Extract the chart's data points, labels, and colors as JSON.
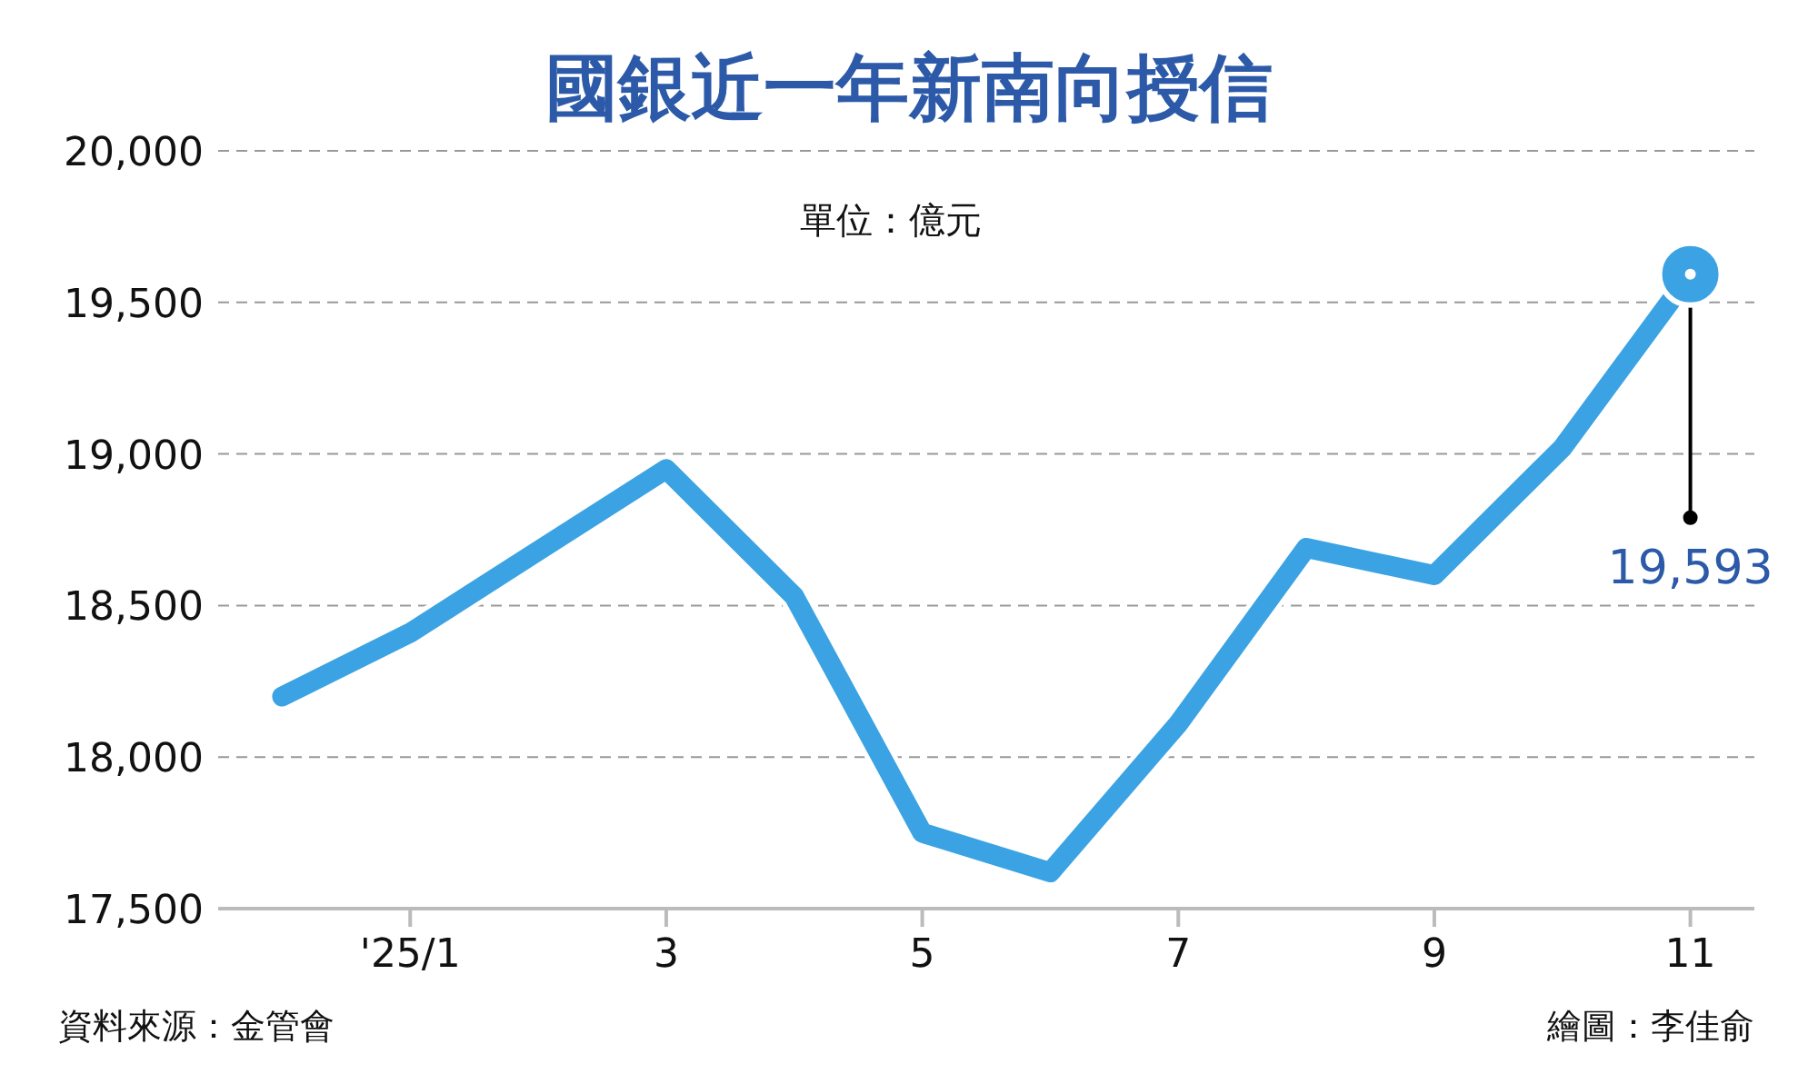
{
  "chart_data": {
    "type": "line",
    "title": "國銀近一年新南向授信",
    "subtitle": "單位：億元",
    "categories": [
      null,
      "'25/1",
      null,
      "3",
      null,
      "5",
      null,
      "7",
      null,
      "9",
      null,
      "11"
    ],
    "series": [
      {
        "color": "#3ba3e3",
        "values": [
          18200,
          18410,
          18680,
          18950,
          18530,
          17750,
          17620,
          18110,
          18690,
          18600,
          19020,
          19593
        ]
      }
    ],
    "ylim": [
      17500,
      20000
    ],
    "yticks": [
      {
        "value": 17500,
        "label": "17,500"
      },
      {
        "value": 18000,
        "label": "18,000"
      },
      {
        "value": 18500,
        "label": "18,500"
      },
      {
        "value": 19000,
        "label": "19,000"
      },
      {
        "value": 19500,
        "label": "19,500"
      },
      {
        "value": 20000,
        "label": "20,000"
      }
    ],
    "grid": "y",
    "annotations": [
      {
        "text": "19,593",
        "x": "11",
        "y": 19593
      },
      "資料來源：金管會",
      "繪圖：李佳俞"
    ]
  }
}
